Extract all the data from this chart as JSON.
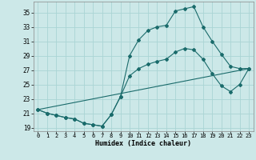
{
  "xlabel": "Humidex (Indice chaleur)",
  "bg_color": "#cce8e8",
  "grid_color": "#aad4d4",
  "line_color": "#1a6b6b",
  "xlim": [
    -0.5,
    23.5
  ],
  "ylim": [
    18.5,
    36.5
  ],
  "xticks": [
    0,
    1,
    2,
    3,
    4,
    5,
    6,
    7,
    8,
    9,
    10,
    11,
    12,
    13,
    14,
    15,
    16,
    17,
    18,
    19,
    20,
    21,
    22,
    23
  ],
  "yticks": [
    19,
    21,
    23,
    25,
    27,
    29,
    31,
    33,
    35
  ],
  "line1_x": [
    0,
    1,
    2,
    3,
    4,
    5,
    6,
    7,
    8,
    9,
    10,
    11,
    12,
    13,
    14,
    15,
    16,
    17,
    18,
    19,
    20,
    21,
    22,
    23
  ],
  "line1_y": [
    21.5,
    21.0,
    20.7,
    20.4,
    20.2,
    19.6,
    19.4,
    19.2,
    20.8,
    23.3,
    29.0,
    31.2,
    32.5,
    33.0,
    33.2,
    35.2,
    35.5,
    35.8,
    33.0,
    31.0,
    29.2,
    27.5,
    27.2,
    27.2
  ],
  "line2_x": [
    0,
    1,
    2,
    3,
    4,
    5,
    6,
    7,
    8,
    9,
    10,
    11,
    12,
    13,
    14,
    15,
    16,
    17,
    18,
    19,
    20,
    21,
    22,
    23
  ],
  "line2_y": [
    21.5,
    21.0,
    20.7,
    20.4,
    20.2,
    19.6,
    19.4,
    19.2,
    20.8,
    23.3,
    26.2,
    27.2,
    27.8,
    28.2,
    28.5,
    29.5,
    30.0,
    29.8,
    28.5,
    26.5,
    24.8,
    24.0,
    25.0,
    27.2
  ],
  "line3_x": [
    0,
    23
  ],
  "line3_y": [
    21.5,
    27.2
  ]
}
